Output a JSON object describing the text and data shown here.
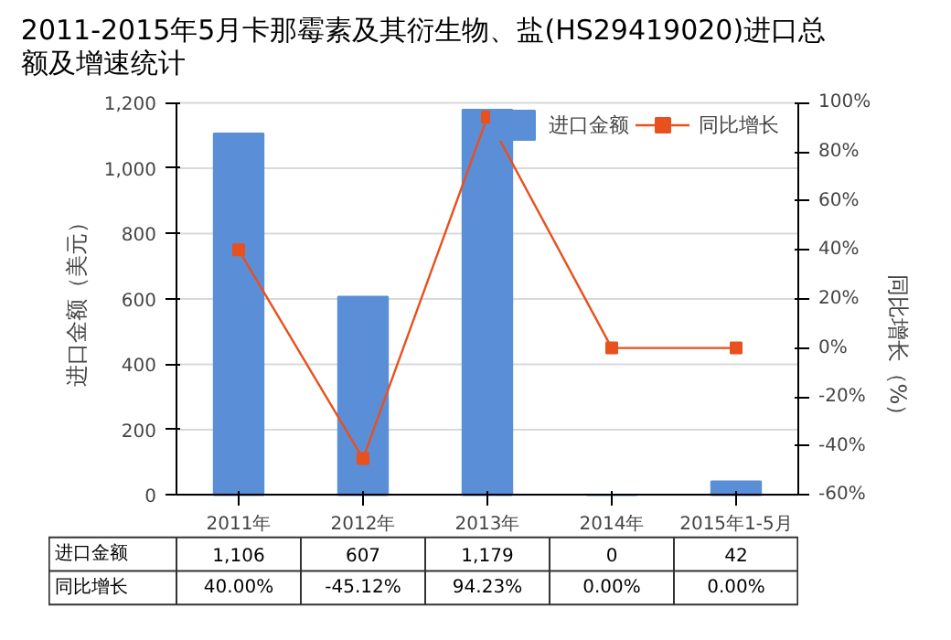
{
  "chart_data": {
    "type": "bar",
    "title": "2011-2015年5月卡那霉素及其衍生物、盐(HS29419020)进口总额及增速统计",
    "ylabel": "进口金额（美元）",
    "y2label": "同比增长（%）",
    "categories": [
      "2011年",
      "2012年",
      "2013年",
      "2014年",
      "2015年1-5月"
    ],
    "series": [
      {
        "name": "进口金额",
        "color": "#5a8fd8",
        "values": [
          1106,
          607,
          1179,
          0,
          42
        ],
        "value_labels": [
          "1,106",
          "607",
          "1,179",
          "0",
          "42"
        ]
      },
      {
        "name": "同比增长",
        "type": "line",
        "axis": "y2",
        "color": "#e8501e",
        "marker": "square",
        "values": [
          40.0,
          -45.12,
          94.23,
          0.0,
          0.0
        ],
        "value_labels": [
          "40.00%",
          "-45.12%",
          "94.23%",
          "0.00%",
          "0.00%"
        ]
      }
    ],
    "ylim": [
      0,
      1200
    ],
    "yticks": [
      0,
      200,
      400,
      600,
      800,
      {
        "value": 1000,
        "label": "1,000"
      },
      {
        "value": 1200,
        "label": "1,200"
      }
    ],
    "y2lim": [
      -60,
      100
    ],
    "y2ticks": [
      {
        "value": -60,
        "label": "-60%"
      },
      {
        "value": -40,
        "label": "-40%"
      },
      {
        "value": -20,
        "label": "-20%"
      },
      {
        "value": 0,
        "label": "0%"
      },
      {
        "value": 20,
        "label": "20%"
      },
      {
        "value": 40,
        "label": "40%"
      },
      {
        "value": 60,
        "label": "60%"
      },
      {
        "value": 80,
        "label": "80%"
      },
      {
        "value": 100,
        "label": "100%"
      }
    ],
    "grid": "y",
    "legend": "top right"
  }
}
